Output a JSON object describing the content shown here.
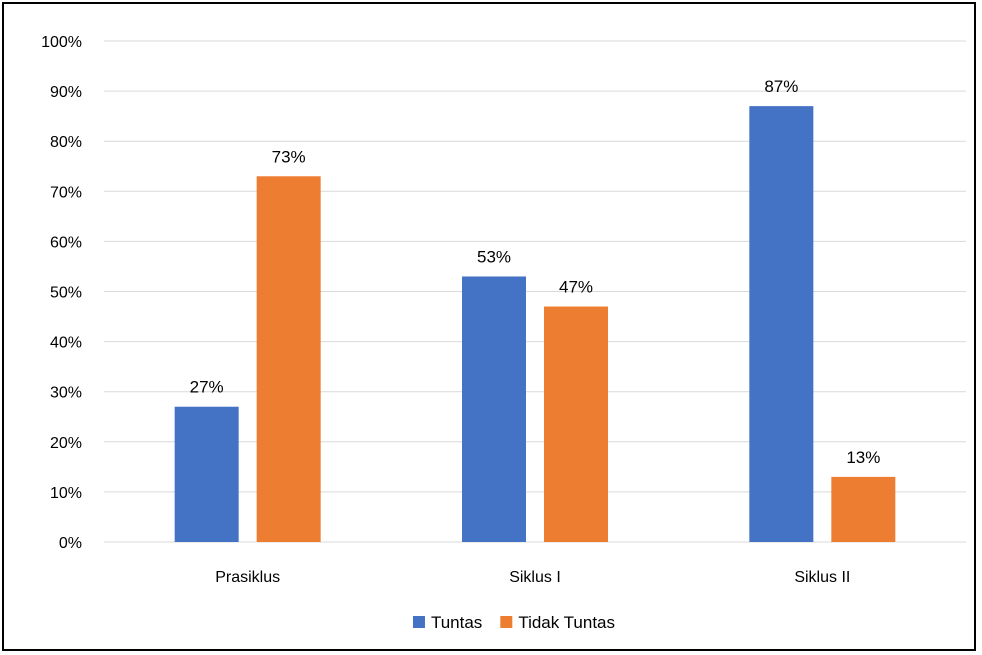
{
  "chart_data": {
    "type": "bar",
    "categories": [
      "Prasiklus",
      "Siklus I",
      "Siklus II"
    ],
    "series": [
      {
        "name": "Tuntas",
        "values": [
          27,
          53,
          87
        ],
        "labels": [
          "27%",
          "53%",
          "87%"
        ],
        "color": "#4472C4"
      },
      {
        "name": "Tidak Tuntas",
        "values": [
          73,
          47,
          13
        ],
        "labels": [
          "73%",
          "47%",
          "13%"
        ],
        "color": "#ED7D31"
      }
    ],
    "y_ticks": [
      "0%",
      "10%",
      "20%",
      "30%",
      "40%",
      "50%",
      "60%",
      "70%",
      "80%",
      "90%",
      "100%"
    ],
    "ylim": [
      0,
      100
    ],
    "grid": true,
    "legend_position": "bottom",
    "gridline_color": "#d9d9d9"
  }
}
